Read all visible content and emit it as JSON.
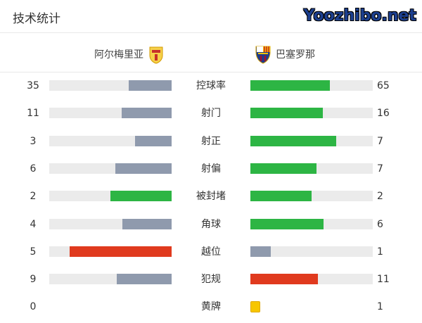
{
  "title": "技术统计",
  "home": {
    "name": "阿尔梅里亚",
    "crest": "almeria-crest"
  },
  "away": {
    "name": "巴塞罗那",
    "crest": "barcelona-crest"
  },
  "colors": {
    "grey": "#8f9aad",
    "green": "#2db544",
    "red": "#e03a1e",
    "yellow": "#f7c600"
  },
  "stats": [
    {
      "label": "控球率",
      "home": 35,
      "away": 65,
      "home_color": "grey",
      "away_color": "green"
    },
    {
      "label": "射门",
      "home": 11,
      "away": 16,
      "home_color": "grey",
      "away_color": "green"
    },
    {
      "label": "射正",
      "home": 3,
      "away": 7,
      "home_color": "grey",
      "away_color": "green"
    },
    {
      "label": "射偏",
      "home": 6,
      "away": 7,
      "home_color": "grey",
      "away_color": "green"
    },
    {
      "label": "被封堵",
      "home": 2,
      "away": 2,
      "home_color": "green",
      "away_color": "green"
    },
    {
      "label": "角球",
      "home": 4,
      "away": 6,
      "home_color": "grey",
      "away_color": "green"
    },
    {
      "label": "越位",
      "home": 5,
      "away": 1,
      "home_color": "red",
      "away_color": "grey"
    },
    {
      "label": "犯规",
      "home": 9,
      "away": 11,
      "home_color": "grey",
      "away_color": "red"
    },
    {
      "label": "黄牌",
      "home": 0,
      "away": 1,
      "home_color": "yellow",
      "away_color": "yellow"
    }
  ],
  "watermark": "Yoozhibo.net"
}
